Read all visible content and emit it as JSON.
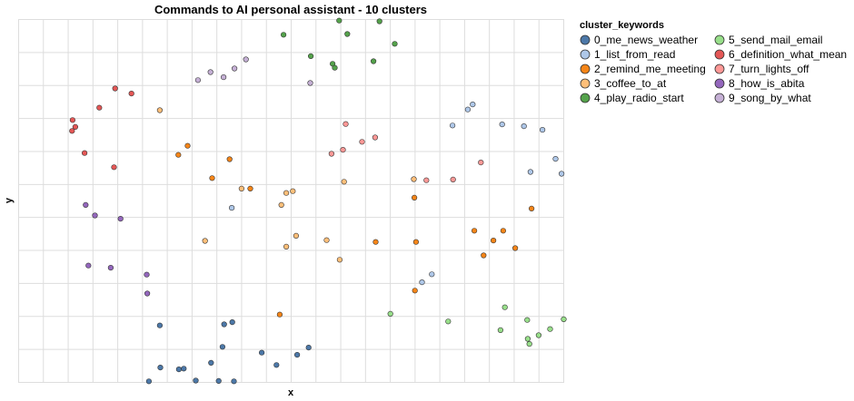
{
  "chart_data": {
    "type": "scatter",
    "title": "Commands to AI personal assistant - 10 clusters",
    "xlabel": "x",
    "ylabel": "y",
    "grid": true,
    "x_tick_labels": false,
    "y_tick_labels": false,
    "xlim": [
      0,
      100
    ],
    "ylim": [
      0,
      100
    ],
    "legend": {
      "title": "cluster_keywords",
      "placement": "right",
      "columns": 2
    },
    "series": [
      {
        "name": "0_me_news_weather",
        "color": "#4c78a8",
        "points": [
          [
            25.9,
            15.7
          ],
          [
            39.2,
            16.6
          ],
          [
            37.7,
            16.0
          ],
          [
            53.2,
            9.6
          ],
          [
            37.4,
            9.8
          ],
          [
            44.6,
            8.2
          ],
          [
            35.3,
            5.4
          ],
          [
            47.3,
            4.8
          ],
          [
            51.1,
            7.6
          ],
          [
            26.0,
            4.1
          ],
          [
            29.4,
            3.6
          ],
          [
            30.3,
            3.8
          ],
          [
            32.5,
            0.5
          ],
          [
            36.7,
            0.4
          ],
          [
            39.5,
            0.3
          ],
          [
            23.9,
            0.3
          ]
        ]
      },
      {
        "name": "1_list_from_read",
        "color": "#aec7e8",
        "points": [
          [
            83.3,
            76.6
          ],
          [
            82.4,
            75.2
          ],
          [
            79.6,
            70.8
          ],
          [
            88.7,
            71.1
          ],
          [
            92.7,
            70.6
          ],
          [
            96.1,
            69.6
          ],
          [
            98.5,
            61.6
          ],
          [
            93.9,
            58.0
          ],
          [
            99.6,
            57.5
          ],
          [
            75.8,
            29.8
          ],
          [
            74.0,
            27.6
          ],
          [
            39.1,
            48.1
          ]
        ]
      },
      {
        "name": "2_remind_me_meeting",
        "color": "#f58518",
        "points": [
          [
            31.0,
            65.2
          ],
          [
            29.3,
            62.7
          ],
          [
            38.7,
            61.5
          ],
          [
            47.9,
            18.7
          ],
          [
            94.1,
            47.9
          ],
          [
            88.9,
            41.8
          ],
          [
            87.1,
            39.1
          ],
          [
            83.6,
            41.8
          ],
          [
            85.3,
            35.0
          ],
          [
            72.9,
            38.7
          ],
          [
            91.1,
            37.0
          ],
          [
            65.5,
            38.7
          ],
          [
            72.7,
            25.3
          ],
          [
            72.6,
            50.9
          ],
          [
            35.5,
            56.3
          ],
          [
            42.5,
            53.4
          ]
        ]
      },
      {
        "name": "3_coffee_to_at",
        "color": "#ffbf79",
        "points": [
          [
            25.9,
            75.0
          ],
          [
            40.9,
            53.4
          ],
          [
            49.1,
            52.2
          ],
          [
            50.3,
            52.7
          ],
          [
            48.2,
            48.9
          ],
          [
            59.7,
            55.3
          ],
          [
            72.5,
            56.0
          ],
          [
            49.1,
            37.4
          ],
          [
            50.9,
            40.4
          ],
          [
            56.5,
            39.2
          ],
          [
            58.9,
            33.8
          ],
          [
            34.2,
            39.0
          ]
        ]
      },
      {
        "name": "4_play_radio_start",
        "color": "#54a24b",
        "points": [
          [
            48.6,
            95.8
          ],
          [
            58.8,
            99.7
          ],
          [
            60.3,
            96.0
          ],
          [
            66.2,
            99.5
          ],
          [
            69.0,
            93.3
          ],
          [
            53.6,
            89.9
          ],
          [
            57.6,
            87.8
          ],
          [
            58.0,
            86.7
          ],
          [
            65.1,
            88.5
          ]
        ]
      },
      {
        "name": "5_send_mail_email",
        "color": "#98df8a",
        "points": [
          [
            68.2,
            18.9
          ],
          [
            78.8,
            16.8
          ],
          [
            89.2,
            20.7
          ],
          [
            88.4,
            14.4
          ],
          [
            93.3,
            17.2
          ],
          [
            95.4,
            13.0
          ],
          [
            100.0,
            17.4
          ],
          [
            97.5,
            14.7
          ],
          [
            93.4,
            12.0
          ],
          [
            93.7,
            10.6
          ]
        ]
      },
      {
        "name": "6_definition_what_mean",
        "color": "#e45756",
        "points": [
          [
            17.7,
            81.0
          ],
          [
            20.7,
            79.6
          ],
          [
            14.8,
            75.7
          ],
          [
            9.9,
            72.3
          ],
          [
            10.4,
            70.4
          ],
          [
            9.8,
            69.3
          ],
          [
            12.1,
            63.2
          ],
          [
            17.5,
            59.3
          ]
        ]
      },
      {
        "name": "7_turn_lights_off",
        "color": "#ff9896",
        "points": [
          [
            60.0,
            71.2
          ],
          [
            65.4,
            67.5
          ],
          [
            63.0,
            66.3
          ],
          [
            59.5,
            64.1
          ],
          [
            57.4,
            63.0
          ],
          [
            74.8,
            55.7
          ],
          [
            79.7,
            55.9
          ],
          [
            84.8,
            60.6
          ]
        ]
      },
      {
        "name": "8_how_is_abita",
        "color": "#9467bd",
        "points": [
          [
            12.3,
            48.9
          ],
          [
            14.0,
            46.0
          ],
          [
            18.7,
            45.1
          ],
          [
            12.8,
            32.2
          ],
          [
            16.9,
            31.6
          ],
          [
            23.5,
            29.7
          ],
          [
            23.6,
            24.5
          ]
        ]
      },
      {
        "name": "9_song_by_what",
        "color": "#c5b0d5",
        "points": [
          [
            41.7,
            89.0
          ],
          [
            39.6,
            86.5
          ],
          [
            35.2,
            85.5
          ],
          [
            37.6,
            84.1
          ],
          [
            32.9,
            83.3
          ],
          [
            53.5,
            82.5
          ]
        ]
      }
    ]
  }
}
